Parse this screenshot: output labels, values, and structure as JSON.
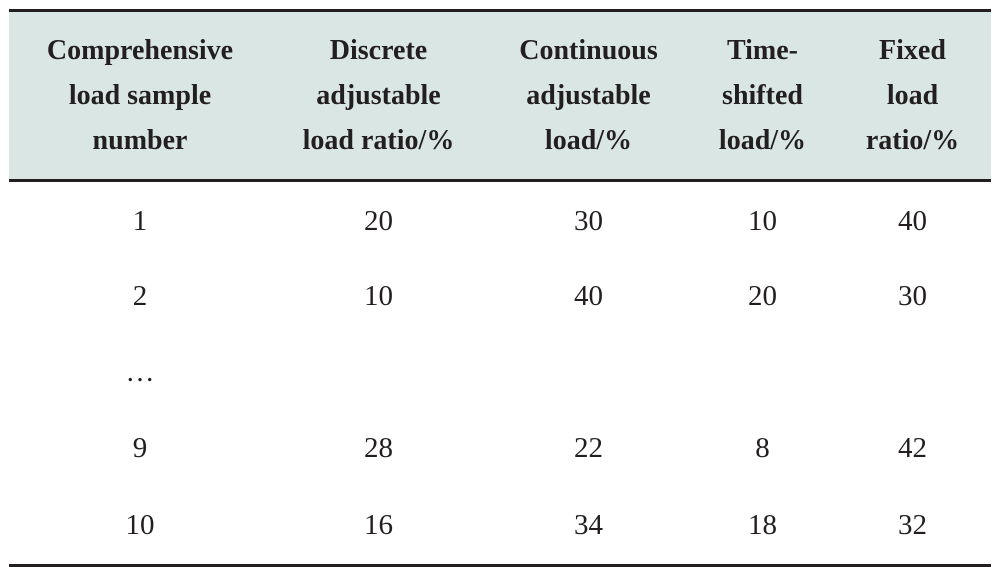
{
  "table": {
    "headers": [
      [
        "Comprehensive",
        "load sample",
        "number"
      ],
      [
        "Discrete",
        "adjustable",
        "load ratio/%"
      ],
      [
        "Continuous",
        "adjustable",
        "load/%"
      ],
      [
        "Time-",
        "shifted",
        "load/%"
      ],
      [
        "Fixed",
        "load",
        "ratio/%"
      ]
    ],
    "rows": [
      [
        "1",
        "20",
        "30",
        "10",
        "40"
      ],
      [
        "2",
        "10",
        "40",
        "20",
        "30"
      ],
      [
        "…",
        "",
        "",
        "",
        ""
      ],
      [
        "9",
        "28",
        "22",
        "8",
        "42"
      ],
      [
        "10",
        "16",
        "34",
        "18",
        "32"
      ]
    ],
    "header_bg": "#d9e6e3",
    "rule_color": "#231f20"
  }
}
